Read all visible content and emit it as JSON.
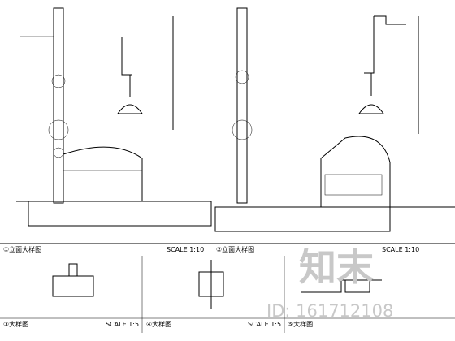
{
  "drawings": [
    {
      "label": "①立面大样图",
      "scale": "SCALE 1:10"
    },
    {
      "label": "②立面大样图",
      "scale": "SCALE 1:10"
    },
    {
      "label": "③大样图",
      "scale": "SCALE 1:5"
    },
    {
      "label": "④大样图",
      "scale": "SCALE 1:5"
    },
    {
      "label": "⑤大样图"
    }
  ],
  "watermark": {
    "brand": "知末",
    "id": "ID: 161712108"
  }
}
